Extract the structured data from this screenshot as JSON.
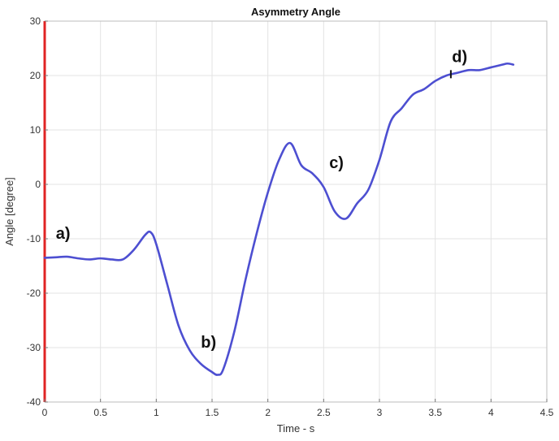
{
  "chart_data": {
    "type": "line",
    "title": "Asymmetry Angle",
    "xlabel": "Time - s",
    "ylabel": "Angle [degree]",
    "xlim": [
      0,
      4.5
    ],
    "ylim": [
      -40,
      30
    ],
    "xticks": [
      0,
      0.5,
      1,
      1.5,
      2,
      2.5,
      3,
      3.5,
      4,
      4.5
    ],
    "xtick_labels": [
      "0",
      "0.5",
      "1",
      "1.5",
      "2",
      "2.5",
      "3",
      "3.5",
      "4",
      "4.5"
    ],
    "yticks": [
      -40,
      -30,
      -20,
      -10,
      0,
      10,
      20,
      30
    ],
    "ytick_labels": [
      "-40",
      "-30",
      "-20",
      "-10",
      "0",
      "10",
      "20",
      "30"
    ],
    "grid": true,
    "line_color": "#4d4fd1",
    "vertical_line": {
      "x": 0,
      "color": "#e02424"
    },
    "series": [
      {
        "x": [
          0.0,
          0.1,
          0.2,
          0.3,
          0.4,
          0.5,
          0.6,
          0.7,
          0.8,
          0.9,
          0.95,
          1.0,
          1.1,
          1.2,
          1.3,
          1.4,
          1.5,
          1.55,
          1.6,
          1.7,
          1.8,
          1.9,
          2.0,
          2.1,
          2.2,
          2.3,
          2.4,
          2.5,
          2.6,
          2.7,
          2.8,
          2.9,
          3.0,
          3.1,
          3.2,
          3.3,
          3.4,
          3.5,
          3.6,
          3.7,
          3.8,
          3.9,
          4.0,
          4.1,
          4.15,
          4.2
        ],
        "values": [
          -13.5,
          -13.4,
          -13.3,
          -13.6,
          -13.8,
          -13.6,
          -13.8,
          -13.8,
          -12.0,
          -9.3,
          -8.8,
          -11.0,
          -18.5,
          -26.0,
          -30.5,
          -33.0,
          -34.5,
          -35.0,
          -34.0,
          -27.0,
          -17.5,
          -9.0,
          -1.5,
          4.5,
          7.6,
          3.5,
          2.0,
          -0.5,
          -5.0,
          -6.3,
          -3.5,
          -1.0,
          4.5,
          11.5,
          14.0,
          16.5,
          17.5,
          19.0,
          20.0,
          20.5,
          21.0,
          21.0,
          21.5,
          22.0,
          22.2,
          22.0
        ]
      }
    ],
    "annotations": [
      {
        "label": "a)",
        "x": 0.1,
        "y": -10.0
      },
      {
        "label": "b)",
        "x": 1.4,
        "y": -30.0
      },
      {
        "label": "c)",
        "x": 2.55,
        "y": 3.0
      },
      {
        "label": "d)",
        "x": 3.65,
        "y": 22.5
      }
    ]
  }
}
